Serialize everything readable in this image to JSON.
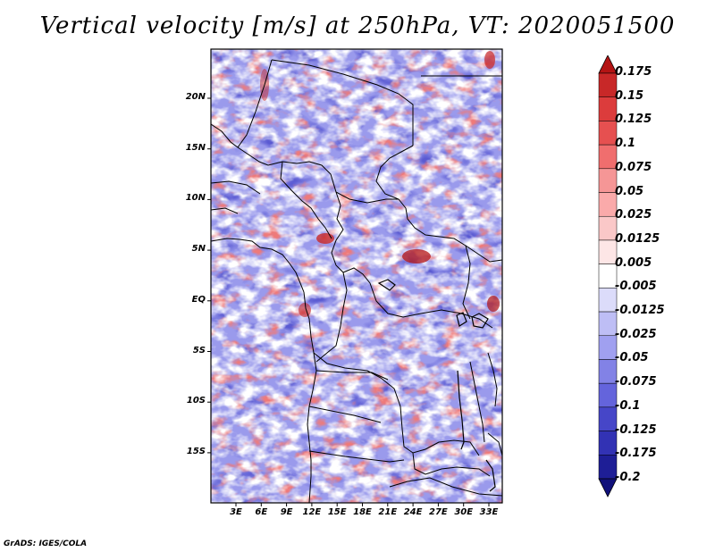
{
  "title": "Vertical velocity [m/s] at 250hPa, VT: 2020051500",
  "map": {
    "variable": "Vertical velocity",
    "units": "m/s",
    "level": "250hPa",
    "valid_time": "2020051500",
    "lat_labels": [
      "20N",
      "15N",
      "10N",
      "5N",
      "EQ",
      "5S",
      "10S",
      "15S"
    ],
    "lon_labels": [
      "3E",
      "6E",
      "9E",
      "12E",
      "15E",
      "18E",
      "21E",
      "24E",
      "27E",
      "30E",
      "33E"
    ],
    "lat_range": [
      -20,
      24.5
    ],
    "lon_range": [
      0,
      35
    ]
  },
  "colorbar": {
    "labels": [
      "0.175",
      "0.15",
      "0.125",
      "0.1",
      "0.075",
      "0.05",
      "0.025",
      "0.0125",
      "0.005",
      "-0.005",
      "-0.0125",
      "-0.025",
      "-0.05",
      "-0.075",
      "-0.1",
      "-0.125",
      "-0.175",
      "-0.2"
    ],
    "colors": [
      "#b41414",
      "#c82828",
      "#dc3c3c",
      "#e65050",
      "#f06e6e",
      "#f59696",
      "#faaaaa",
      "#fac8c8",
      "#fde6e6",
      "#ffffff",
      "#dcdcfa",
      "#bebef5",
      "#a0a0f0",
      "#8282e6",
      "#6464dc",
      "#4646c8",
      "#3232b4",
      "#1e1e96",
      "#10107a"
    ]
  },
  "credit": "GrADS: IGES/COLA"
}
